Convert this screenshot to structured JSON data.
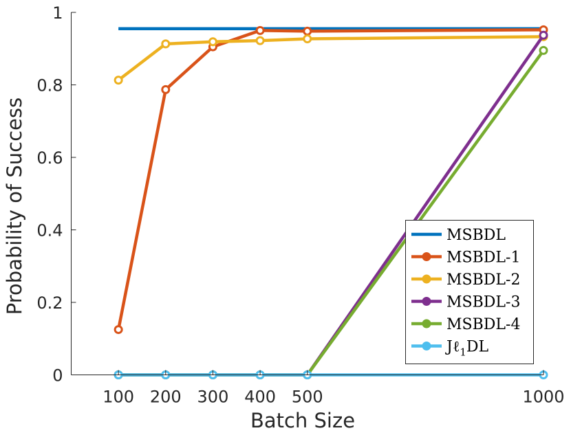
{
  "chart_data": {
    "type": "line",
    "xlabel": "Batch Size",
    "ylabel": "Probability of Success",
    "x": [
      100,
      200,
      300,
      400,
      500,
      1000
    ],
    "x_tick_labels": [
      "100",
      "200",
      "300",
      "400",
      "500",
      "1000"
    ],
    "y_ticks": [
      0,
      0.2,
      0.4,
      0.6,
      0.8,
      1
    ],
    "y_tick_labels": [
      "0",
      "0.2",
      "0.4",
      "0.6",
      "0.8",
      "1"
    ],
    "xlim": [
      0,
      1000
    ],
    "ylim": [
      0,
      1
    ],
    "grid": false,
    "legend_position": "bottom-right",
    "series": [
      {
        "name": "MSBDL",
        "color": "#0072BD",
        "marker": "none",
        "values": [
          0.955,
          0.955,
          0.955,
          0.955,
          0.955,
          0.955
        ]
      },
      {
        "name": "MSBDL-1",
        "color": "#D95319",
        "marker": "circle",
        "values": [
          0.125,
          0.787,
          0.905,
          0.95,
          0.948,
          0.952
        ]
      },
      {
        "name": "MSBDL-2",
        "color": "#EDB120",
        "marker": "circle",
        "values": [
          0.813,
          0.913,
          0.919,
          0.922,
          0.927,
          0.933
        ]
      },
      {
        "name": "MSBDL-3",
        "color": "#7E2F8E",
        "marker": "circle",
        "values": [
          0,
          0,
          0,
          0,
          0,
          0.937
        ]
      },
      {
        "name": "MSBDL-4",
        "color": "#77AC30",
        "marker": "circle",
        "values": [
          0,
          0,
          0,
          0,
          0,
          0.895
        ]
      },
      {
        "name": "Jℓ1DL",
        "display_name": {
          "pre": "Jℓ",
          "sub": "1",
          "post": "DL"
        },
        "color": "#4DBEEE",
        "marker": "circle",
        "values": [
          0,
          0,
          0,
          0,
          0,
          0
        ]
      }
    ]
  }
}
